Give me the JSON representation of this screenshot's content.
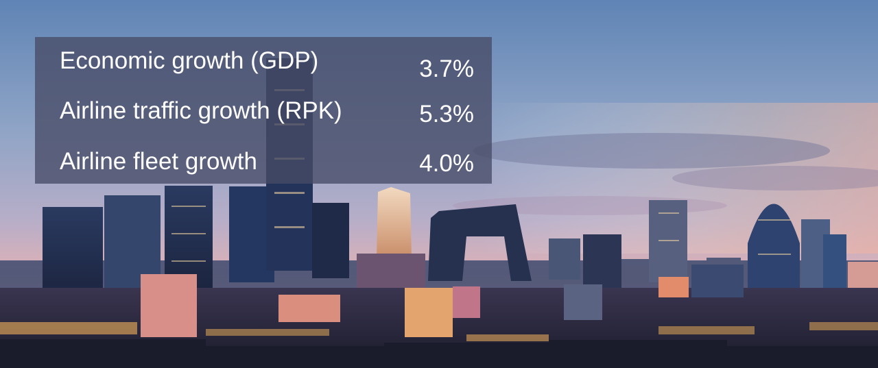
{
  "stats": [
    {
      "label": "Economic growth (GDP)",
      "value": "3.7%"
    },
    {
      "label": "Airline traffic growth (RPK)",
      "value": "5.3%"
    },
    {
      "label": "Airline fleet growth",
      "value": "4.0%"
    }
  ],
  "colors": {
    "sky_top": "#5f84b5",
    "sky_mid": "#b7aec8",
    "sky_horizon": "#e8b2b1",
    "city_dark": "#1e2740",
    "window_warm": "#f4b35c",
    "panel": "#484c66"
  }
}
